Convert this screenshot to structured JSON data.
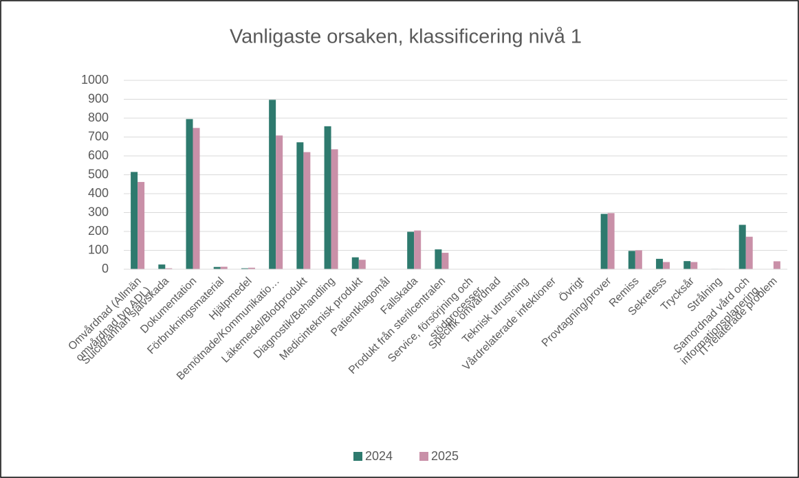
{
  "chart_data": {
    "type": "bar",
    "title": "Vanligaste orsaken, klassificering nivå 1",
    "categories": [
      "Omvårdnad (Allmän omvårdnad typ ADL)",
      "Suicid/annan självskada",
      "Dokumentation",
      "Förbrukningsmaterial",
      "Hjälpmedel",
      "Bemötnade/Kommunikatio…",
      "Läkemedel/Blodprodukt",
      "Diagnostik/Behandling",
      "Medicinteknisk produkt",
      "Patientklagomål",
      "Fallskada",
      "Produkt från sterilcentralen",
      "Service, försörjning och stödprocesser",
      "Specifik omvårdnad",
      "Teknisk utrustning",
      "Vårdrelaterade infektioner",
      "Övrigt",
      "Provtagning/prover",
      "Remiss",
      "Sekretess",
      "Trycksår",
      "Strålning",
      "Samordnad vård och informationsplanering",
      "IT-relaterade problem"
    ],
    "series": [
      {
        "name": "2024",
        "color": "#2e7a6e",
        "values": [
          515,
          25,
          795,
          12,
          5,
          897,
          672,
          757,
          63,
          0,
          198,
          105,
          0,
          0,
          0,
          0,
          0,
          293,
          97,
          55,
          43,
          2,
          235,
          0
        ]
      },
      {
        "name": "2025",
        "color": "#c990a8",
        "values": [
          462,
          5,
          748,
          13,
          8,
          708,
          620,
          635,
          50,
          0,
          205,
          87,
          0,
          0,
          0,
          0,
          0,
          297,
          100,
          38,
          38,
          2,
          172,
          42
        ]
      }
    ],
    "ylim": [
      0,
      1000
    ],
    "yticks": [
      0,
      100,
      200,
      300,
      400,
      500,
      600,
      700,
      800,
      900,
      1000
    ],
    "grid": true,
    "legend": "bottom"
  }
}
